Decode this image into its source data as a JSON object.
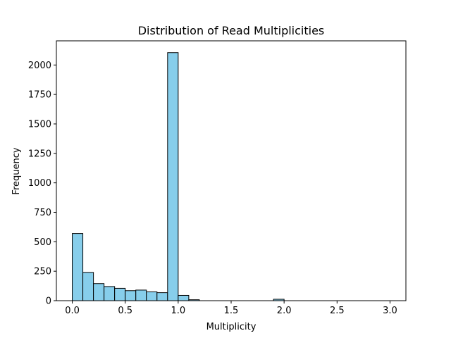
{
  "chart_data": {
    "type": "bar",
    "title": "Distribution of Read Multiplicities",
    "xlabel": "Multiplicity",
    "ylabel": "Frequency",
    "xlim": [
      -0.15,
      3.15
    ],
    "ylim": [
      0,
      2205
    ],
    "xticks": [
      0.0,
      0.5,
      1.0,
      1.5,
      2.0,
      2.5,
      3.0
    ],
    "xtick_labels": [
      "0.0",
      "0.5",
      "1.0",
      "1.5",
      "2.0",
      "2.5",
      "3.0"
    ],
    "yticks": [
      0,
      250,
      500,
      750,
      1000,
      1250,
      1500,
      1750,
      2000
    ],
    "ytick_labels": [
      "0",
      "250",
      "500",
      "750",
      "1000",
      "1250",
      "1500",
      "1750",
      "2000"
    ],
    "bar_color": "#87ceeb",
    "edge_color": "#000000",
    "grid": false,
    "bins": [
      {
        "start": 0.0,
        "end": 0.1,
        "value": 570
      },
      {
        "start": 0.1,
        "end": 0.2,
        "value": 240
      },
      {
        "start": 0.2,
        "end": 0.3,
        "value": 145
      },
      {
        "start": 0.3,
        "end": 0.4,
        "value": 120
      },
      {
        "start": 0.4,
        "end": 0.5,
        "value": 105
      },
      {
        "start": 0.5,
        "end": 0.6,
        "value": 85
      },
      {
        "start": 0.6,
        "end": 0.7,
        "value": 90
      },
      {
        "start": 0.7,
        "end": 0.8,
        "value": 75
      },
      {
        "start": 0.8,
        "end": 0.9,
        "value": 68
      },
      {
        "start": 0.9,
        "end": 1.0,
        "value": 2105
      },
      {
        "start": 1.0,
        "end": 1.1,
        "value": 45
      },
      {
        "start": 1.1,
        "end": 1.2,
        "value": 8
      },
      {
        "start": 1.2,
        "end": 1.3,
        "value": 0
      },
      {
        "start": 1.3,
        "end": 1.4,
        "value": 0
      },
      {
        "start": 1.4,
        "end": 1.5,
        "value": 0
      },
      {
        "start": 1.5,
        "end": 1.6,
        "value": 0
      },
      {
        "start": 1.6,
        "end": 1.7,
        "value": 0
      },
      {
        "start": 1.7,
        "end": 1.8,
        "value": 0
      },
      {
        "start": 1.8,
        "end": 1.9,
        "value": 0
      },
      {
        "start": 1.9,
        "end": 2.0,
        "value": 12
      },
      {
        "start": 2.0,
        "end": 2.1,
        "value": 0
      },
      {
        "start": 2.1,
        "end": 2.2,
        "value": 0
      },
      {
        "start": 2.2,
        "end": 2.3,
        "value": 0
      },
      {
        "start": 2.3,
        "end": 2.4,
        "value": 0
      },
      {
        "start": 2.4,
        "end": 2.5,
        "value": 0
      },
      {
        "start": 2.5,
        "end": 2.6,
        "value": 0
      },
      {
        "start": 2.6,
        "end": 2.7,
        "value": 0
      },
      {
        "start": 2.7,
        "end": 2.8,
        "value": 0
      },
      {
        "start": 2.8,
        "end": 2.9,
        "value": 0
      },
      {
        "start": 2.9,
        "end": 3.0,
        "value": 0
      }
    ]
  }
}
